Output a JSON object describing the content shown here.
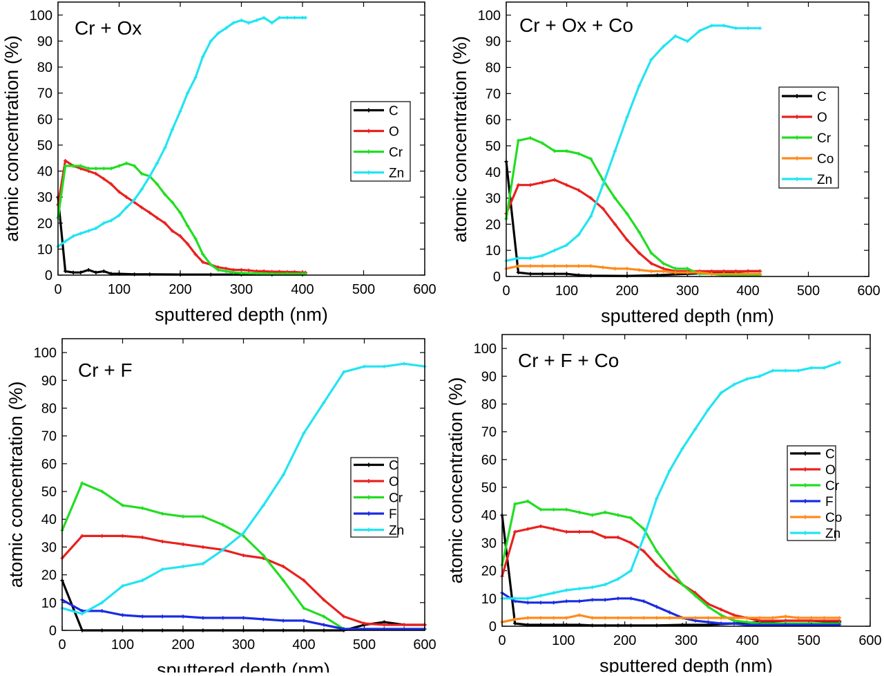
{
  "figure": {
    "colors": {
      "C": "#000000",
      "O": "#e8211f",
      "Cr": "#22dd22",
      "F": "#1a2be0",
      "Co": "#ff8a1a",
      "Zn": "#22e4f2"
    }
  },
  "chart_data": [
    {
      "type": "line",
      "title": "Cr + Ox",
      "xlabel": "sputtered depth (nm)",
      "ylabel": "atomic concentration (%)",
      "xlim": [
        0,
        600
      ],
      "ylim": [
        0,
        105
      ],
      "xticks": [
        "0",
        "100",
        "200",
        "300",
        "400",
        "500",
        "600"
      ],
      "yticks": [
        "0",
        "10",
        "20",
        "30",
        "40",
        "50",
        "60",
        "70",
        "80",
        "90",
        "100"
      ],
      "legend": [
        "C",
        "O",
        "Cr",
        "Zn"
      ],
      "series": [
        {
          "name": "C",
          "x": [
            0,
            12,
            25,
            37,
            50,
            62,
            75,
            87,
            100,
            125,
            150,
            200,
            250,
            300,
            350,
            400
          ],
          "y": [
            30,
            1.5,
            1,
            1,
            2,
            1,
            1.5,
            0.5,
            0.5,
            0.3,
            0.3,
            0.2,
            0.2,
            0.2,
            0.2,
            0.2
          ]
        },
        {
          "name": "O",
          "x": [
            0,
            12,
            25,
            37,
            50,
            62,
            75,
            87,
            100,
            112,
            125,
            137,
            150,
            162,
            175,
            187,
            200,
            212,
            225,
            237,
            250,
            262,
            275,
            287,
            300,
            312,
            325,
            337,
            350,
            362,
            375,
            387,
            400,
            405
          ],
          "y": [
            27,
            44,
            42,
            41,
            40,
            39,
            37,
            35,
            32,
            30,
            28,
            26,
            24,
            22,
            20,
            17,
            15,
            12,
            8,
            5,
            4,
            3,
            2.5,
            2,
            2,
            1.8,
            1.5,
            1.5,
            1.3,
            1.3,
            1.2,
            1.2,
            1,
            1
          ]
        },
        {
          "name": "Cr",
          "x": [
            0,
            12,
            25,
            37,
            50,
            62,
            75,
            87,
            100,
            112,
            125,
            137,
            150,
            162,
            175,
            187,
            200,
            212,
            225,
            237,
            250,
            262,
            275,
            287,
            300,
            325,
            350,
            375,
            400,
            405
          ],
          "y": [
            22,
            42,
            42,
            42,
            41,
            41,
            41,
            41,
            42,
            43,
            42,
            39,
            38,
            35,
            31,
            28,
            24,
            19,
            14,
            8,
            4,
            2,
            1.5,
            1,
            0.8,
            0.6,
            0.5,
            0.5,
            0.5,
            0.5
          ]
        },
        {
          "name": "Zn",
          "x": [
            0,
            12,
            25,
            37,
            50,
            62,
            75,
            87,
            100,
            112,
            125,
            137,
            150,
            162,
            175,
            187,
            200,
            212,
            225,
            237,
            250,
            262,
            275,
            287,
            300,
            312,
            325,
            337,
            350,
            362,
            375,
            387,
            400,
            405
          ],
          "y": [
            11,
            13,
            15,
            16,
            17,
            18,
            20,
            21,
            23,
            26,
            29,
            33,
            38,
            43,
            49,
            56,
            63,
            70,
            76,
            84,
            90,
            93,
            95,
            97,
            98,
            97,
            98,
            99,
            97,
            99,
            99,
            99,
            99,
            99
          ]
        }
      ]
    },
    {
      "type": "line",
      "title": "Cr + Ox + Co",
      "xlabel": "sputtered depth (nm)",
      "ylabel": "atomic concentration (%)",
      "xlim": [
        0,
        600
      ],
      "ylim": [
        0,
        105
      ],
      "xticks": [
        "0",
        "100",
        "200",
        "300",
        "400",
        "500",
        "600"
      ],
      "yticks": [
        "0",
        "10",
        "20",
        "30",
        "40",
        "50",
        "60",
        "70",
        "80",
        "90",
        "100"
      ],
      "legend": [
        "C",
        "O",
        "Cr",
        "Co",
        "Zn"
      ],
      "series": [
        {
          "name": "C",
          "x": [
            0,
            20,
            40,
            60,
            80,
            100,
            120,
            140,
            200,
            250,
            300,
            350,
            400,
            420
          ],
          "y": [
            44,
            1.5,
            1,
            1,
            1,
            1,
            0.5,
            0.3,
            0.2,
            0.5,
            1,
            1.5,
            2,
            2
          ]
        },
        {
          "name": "O",
          "x": [
            0,
            20,
            40,
            60,
            80,
            100,
            120,
            140,
            160,
            180,
            200,
            220,
            240,
            260,
            280,
            300,
            320,
            340,
            360,
            380,
            400,
            420
          ],
          "y": [
            24,
            35,
            35,
            36,
            37,
            35,
            33,
            30,
            26,
            20,
            14,
            9,
            5,
            3,
            2,
            2,
            2,
            2,
            2,
            2,
            2,
            2
          ]
        },
        {
          "name": "Cr",
          "x": [
            0,
            20,
            40,
            60,
            80,
            100,
            120,
            140,
            160,
            180,
            200,
            220,
            240,
            260,
            280,
            300,
            320,
            340,
            360,
            380,
            400,
            420
          ],
          "y": [
            22,
            52,
            53,
            51,
            48,
            48,
            47,
            45,
            37,
            30,
            24,
            17,
            9,
            5,
            3,
            3,
            1,
            1,
            0.5,
            0.5,
            0.5,
            0.5
          ]
        },
        {
          "name": "Co",
          "x": [
            0,
            20,
            40,
            60,
            80,
            100,
            120,
            140,
            160,
            180,
            200,
            220,
            240,
            260,
            280,
            300,
            320,
            340,
            360,
            380,
            400,
            420
          ],
          "y": [
            3,
            4,
            4,
            4,
            4,
            4,
            4,
            4,
            3.5,
            3,
            3,
            2.5,
            2,
            2,
            1.5,
            1.5,
            1.5,
            1,
            1,
            1,
            1,
            1
          ]
        },
        {
          "name": "Zn",
          "x": [
            0,
            20,
            40,
            60,
            80,
            100,
            120,
            140,
            160,
            180,
            200,
            220,
            240,
            260,
            280,
            300,
            320,
            340,
            360,
            380,
            400,
            420
          ],
          "y": [
            6,
            7,
            7,
            8,
            10,
            12,
            16,
            23,
            35,
            48,
            61,
            73,
            83,
            88,
            92,
            90,
            94,
            96,
            96,
            95,
            95,
            95
          ]
        }
      ]
    },
    {
      "type": "line",
      "title": "Cr + F",
      "xlabel": "sputtered depth (nm)",
      "ylabel": "atomic concentration (%)",
      "xlim": [
        0,
        600
      ],
      "ylim": [
        0,
        105
      ],
      "xticks": [
        "0",
        "100",
        "200",
        "300",
        "400",
        "500",
        "600"
      ],
      "yticks": [
        "0",
        "10",
        "20",
        "30",
        "40",
        "50",
        "60",
        "70",
        "80",
        "90",
        "100"
      ],
      "legend": [
        "C",
        "O",
        "Cr",
        "F",
        "Zn"
      ],
      "series": [
        {
          "name": "C",
          "x": [
            0,
            33,
            66,
            100,
            133,
            166,
            200,
            233,
            266,
            300,
            333,
            366,
            400,
            433,
            466,
            500,
            533,
            566,
            600
          ],
          "y": [
            18,
            0,
            0,
            0,
            0,
            0,
            0,
            0,
            0,
            0,
            0,
            0,
            0,
            0,
            0,
            2,
            3,
            2,
            2
          ]
        },
        {
          "name": "O",
          "x": [
            0,
            33,
            66,
            100,
            133,
            166,
            200,
            233,
            266,
            300,
            333,
            366,
            400,
            433,
            466,
            500,
            533,
            566,
            600
          ],
          "y": [
            26,
            34,
            34,
            34,
            33.5,
            32,
            31,
            30,
            29,
            27,
            26,
            23,
            18,
            11,
            5,
            2.5,
            2,
            2,
            2
          ]
        },
        {
          "name": "Cr",
          "x": [
            0,
            33,
            66,
            100,
            133,
            166,
            200,
            233,
            266,
            300,
            333,
            366,
            400,
            433,
            466,
            500,
            533,
            566,
            600
          ],
          "y": [
            36,
            53,
            50,
            45,
            44,
            42,
            41,
            41,
            38,
            34,
            27,
            18,
            8,
            5,
            0.5,
            0.5,
            0.5,
            0.5,
            0.5
          ]
        },
        {
          "name": "F",
          "x": [
            0,
            33,
            66,
            100,
            133,
            166,
            200,
            233,
            266,
            300,
            333,
            366,
            400,
            433,
            466,
            500,
            533,
            566,
            600
          ],
          "y": [
            11,
            7,
            7,
            5.5,
            5,
            5,
            5,
            4.5,
            4.5,
            4.5,
            4,
            3.5,
            3.5,
            2,
            0.5,
            0.5,
            0.5,
            0.5,
            0.5
          ]
        },
        {
          "name": "Zn",
          "x": [
            0,
            33,
            66,
            100,
            133,
            166,
            200,
            233,
            266,
            300,
            333,
            366,
            400,
            433,
            466,
            500,
            533,
            566,
            600
          ],
          "y": [
            8,
            6,
            10,
            16,
            18,
            22,
            23,
            24,
            29,
            35,
            45,
            56,
            71,
            82,
            93,
            95,
            95,
            96,
            95
          ]
        }
      ]
    },
    {
      "type": "line",
      "title": "Cr + F + Co",
      "xlabel": "sputtered depth (nm)",
      "ylabel": "atomic concentration (%)",
      "xlim": [
        0,
        600
      ],
      "ylim": [
        0,
        105
      ],
      "xticks": [
        "0",
        "100",
        "200",
        "300",
        "400",
        "500",
        "600"
      ],
      "yticks": [
        "0",
        "10",
        "20",
        "30",
        "40",
        "50",
        "60",
        "70",
        "80",
        "90",
        "100"
      ],
      "legend": [
        "C",
        "O",
        "Cr",
        "F",
        "Co",
        "Zn"
      ],
      "series": [
        {
          "name": "C",
          "x": [
            0,
            21,
            42,
            63,
            84,
            105,
            126,
            147,
            168,
            189,
            210,
            252,
            294,
            336,
            378,
            420,
            462,
            504,
            550
          ],
          "y": [
            40,
            1,
            0.5,
            0.5,
            0.5,
            0.5,
            0.5,
            0.3,
            0.3,
            0.3,
            0.3,
            0.3,
            0.5,
            0.5,
            1,
            1.5,
            2,
            2,
            1.5
          ]
        },
        {
          "name": "O",
          "x": [
            0,
            21,
            42,
            63,
            84,
            105,
            126,
            147,
            168,
            189,
            210,
            231,
            252,
            273,
            294,
            315,
            336,
            357,
            378,
            399,
            420,
            462,
            504,
            550
          ],
          "y": [
            18,
            34,
            35,
            36,
            35,
            34,
            34,
            34,
            32,
            32,
            30,
            27,
            22,
            18,
            15,
            12,
            8,
            6,
            4,
            3,
            2,
            2,
            2,
            2
          ]
        },
        {
          "name": "Cr",
          "x": [
            0,
            21,
            42,
            63,
            84,
            105,
            126,
            147,
            168,
            189,
            210,
            231,
            252,
            273,
            294,
            315,
            336,
            357,
            378,
            399,
            420,
            462,
            504,
            550
          ],
          "y": [
            22,
            44,
            45,
            42,
            42,
            42,
            41,
            40,
            41,
            40,
            39,
            35,
            27,
            21,
            15,
            11,
            7,
            4,
            2,
            1.5,
            1,
            1,
            1,
            1
          ]
        },
        {
          "name": "F",
          "x": [
            0,
            21,
            42,
            63,
            84,
            105,
            126,
            147,
            168,
            189,
            210,
            231,
            252,
            273,
            294,
            315,
            336,
            357,
            378,
            399,
            420,
            462,
            504,
            550
          ],
          "y": [
            12,
            9,
            8.5,
            8.5,
            8.5,
            9,
            9,
            9.5,
            9.5,
            10,
            10,
            9,
            7,
            5,
            3,
            2,
            1.5,
            1,
            1,
            0.5,
            0.5,
            0.5,
            0.5,
            0.5
          ]
        },
        {
          "name": "Co",
          "x": [
            0,
            21,
            42,
            63,
            84,
            105,
            126,
            147,
            168,
            189,
            210,
            231,
            252,
            273,
            294,
            315,
            336,
            357,
            378,
            399,
            420,
            441,
            462,
            483,
            504,
            525,
            550
          ],
          "y": [
            1.5,
            2.5,
            3,
            3,
            3,
            3,
            4,
            3,
            3,
            3,
            3,
            3,
            3,
            3,
            3,
            3,
            3,
            3,
            3,
            3,
            3,
            3,
            3.5,
            3,
            3,
            3,
            3
          ]
        },
        {
          "name": "Zn",
          "x": [
            0,
            21,
            42,
            63,
            84,
            105,
            126,
            147,
            168,
            189,
            210,
            231,
            252,
            273,
            294,
            315,
            336,
            357,
            378,
            399,
            420,
            441,
            462,
            483,
            504,
            525,
            550
          ],
          "y": [
            10,
            10,
            10,
            11,
            12,
            13,
            13.5,
            14,
            15,
            17,
            20,
            32,
            46,
            56,
            64,
            71,
            78,
            84,
            87,
            89,
            90,
            92,
            92,
            92,
            93,
            93,
            95
          ]
        }
      ]
    }
  ]
}
